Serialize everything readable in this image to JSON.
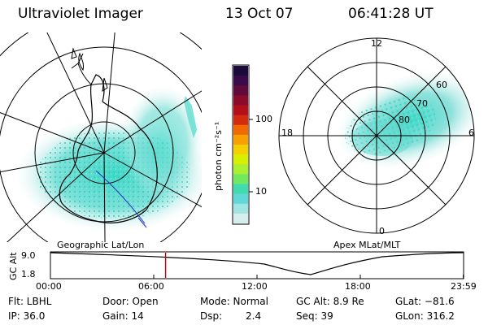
{
  "header": {
    "instrument": "Ultraviolet Imager",
    "date": "13 Oct 07",
    "time": "06:41:28 UT"
  },
  "left_panel": {
    "label": "Geographic Lat/Lon"
  },
  "right_panel": {
    "label": "Apex MLat/MLT",
    "mlt_labels": [
      "12",
      "18",
      "6",
      "0"
    ],
    "mlat_labels": [
      "60",
      "70",
      "80"
    ]
  },
  "colorbar": {
    "unit_label": "photon cm⁻²s⁻¹",
    "tick_labels": [
      "100",
      "10"
    ],
    "colors_top_to_bottom": [
      "#1a0a3a",
      "#3b0a4a",
      "#600a3c",
      "#8c0a2a",
      "#b3101a",
      "#d42a10",
      "#f06a00",
      "#f7a000",
      "#f4d000",
      "#d8f000",
      "#a8f030",
      "#70e860",
      "#40dcb0",
      "#60d8d8",
      "#a0e4e4",
      "#d8eeee"
    ]
  },
  "timeline": {
    "y_axis_label": "GC Alt",
    "y_ticks": [
      "9.0",
      "1.8"
    ],
    "x_ticks": [
      "00:00",
      "06:00",
      "12:00",
      "18:00",
      "23:59"
    ],
    "x_tick_hours": [
      0,
      6,
      12,
      18,
      23.98
    ],
    "current_hour": 6.69,
    "marker_color": "#cc0000"
  },
  "info": {
    "filter": "Flt: LBHL",
    "ip": "IP: 36.0",
    "door": "Door: Open",
    "gain": "Gain: 14",
    "mode": "Mode: Normal",
    "dsp_label": "Dsp:",
    "dsp_value": "2.4",
    "gc_alt": "GC Alt: 8.9 Re",
    "seq": "Seq: 39",
    "glat": "GLat: −81.6",
    "glon": "GLon: 316.2"
  },
  "colors": {
    "aurora": "#40d8c8",
    "aurora_pale": "#bfeaea",
    "land": "#000000"
  }
}
